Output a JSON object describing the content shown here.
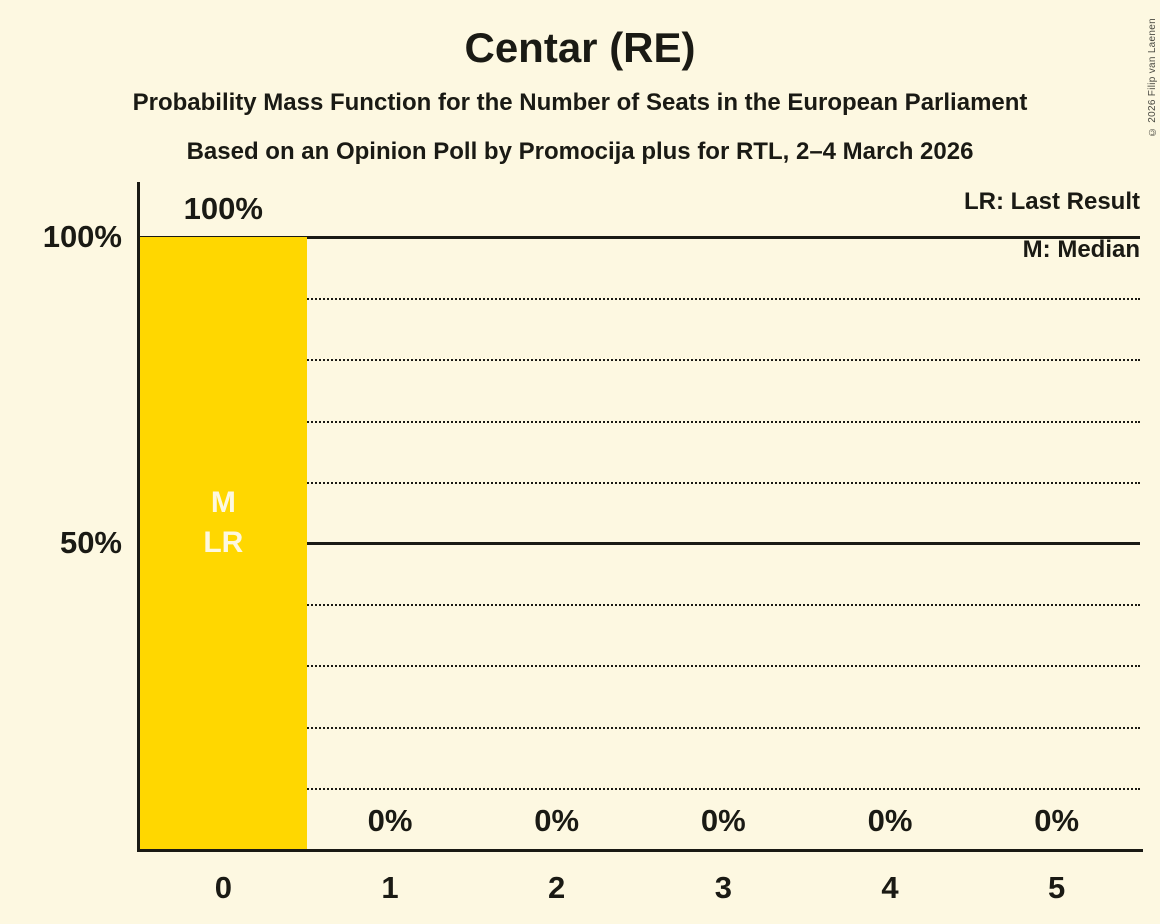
{
  "header": {
    "title": "Centar (RE)",
    "subtitle1": "Probability Mass Function for the Number of Seats in the European Parliament",
    "subtitle2": "Based on an Opinion Poll by Promocija plus for RTL, 2–4 March 2026"
  },
  "legend": {
    "lr": "LR: Last Result",
    "m": "M: Median"
  },
  "footer": {
    "copyright": "© 2026 Filip van Laenen"
  },
  "colors": {
    "background": "#FDF8E1",
    "bar": "#FFD700",
    "text": "#1A1A14",
    "bar_annotation": "#FDF8E1"
  },
  "chart_data": {
    "type": "bar",
    "title": "Centar (RE)",
    "xlabel": "",
    "ylabel": "",
    "categories": [
      "0",
      "1",
      "2",
      "3",
      "4",
      "5"
    ],
    "values": [
      100,
      0,
      0,
      0,
      0,
      0
    ],
    "value_labels": [
      "100%",
      "0%",
      "0%",
      "0%",
      "0%",
      "0%"
    ],
    "bar_annotations": [
      [
        "M",
        "LR"
      ],
      [],
      [],
      [],
      [],
      []
    ],
    "ylim": [
      0,
      100
    ],
    "y_ticks": [
      {
        "value": 100,
        "label": "100%"
      },
      {
        "value": 50,
        "label": "50%"
      }
    ],
    "gridlines": {
      "solid": [
        100,
        50
      ],
      "dotted": [
        90,
        80,
        70,
        60,
        40,
        30,
        20,
        10
      ]
    },
    "legend_position": "top-right",
    "grid": "horizontal-only"
  }
}
